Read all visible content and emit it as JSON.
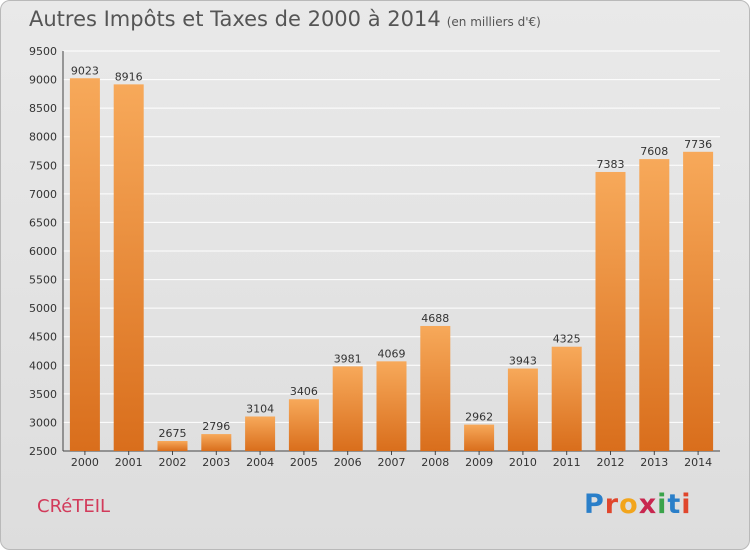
{
  "header": {
    "title": "Autres Impôts et Taxes de 2000 à 2014",
    "subtitle": "(en milliers d'€)"
  },
  "footer": {
    "commune": "CRéTEIL",
    "brand": [
      "P",
      "r",
      "o",
      "x",
      "i",
      "t",
      "i"
    ],
    "brand_colors": [
      "#2a7fc9",
      "#e0462c",
      "#f2a51c",
      "#c8264f",
      "#3aa34a",
      "#2a7fc9",
      "#e0462c"
    ]
  },
  "colors": {
    "bar_top": "#f7a95a",
    "bar_bottom": "#d96e1c",
    "grid": "#ffffff",
    "text": "#333333"
  },
  "chart_data": {
    "type": "bar",
    "categories": [
      "2000",
      "2001",
      "2002",
      "2003",
      "2004",
      "2005",
      "2006",
      "2007",
      "2008",
      "2009",
      "2010",
      "2011",
      "2012",
      "2013",
      "2014"
    ],
    "values": [
      9023,
      8916,
      2675,
      2796,
      3104,
      3406,
      3981,
      4069,
      4688,
      2962,
      3943,
      4325,
      7383,
      7608,
      7736
    ],
    "ylim": [
      2500,
      9500
    ],
    "yticks": [
      2500,
      3000,
      3500,
      4000,
      4500,
      5000,
      5500,
      6000,
      6500,
      7000,
      7500,
      8000,
      8500,
      9000,
      9500
    ],
    "grid": true
  }
}
